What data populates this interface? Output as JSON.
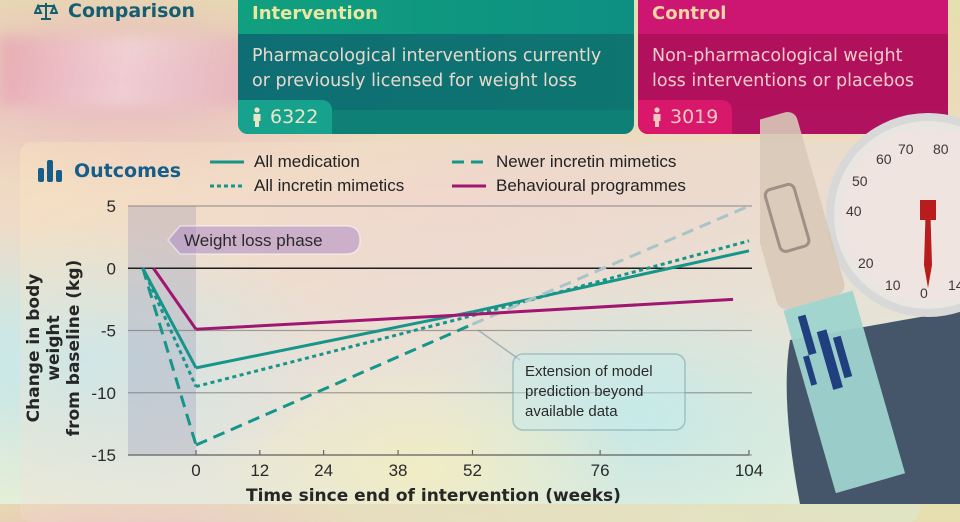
{
  "header": {
    "comparison_label": "Comparison",
    "comparison_icon": "scales-icon"
  },
  "intervention": {
    "title": "Intervention",
    "description_line1": "Pharmacological interventions currently",
    "description_line2": "or previously licensed for weight loss",
    "participants": "6322",
    "participants_icon": "person-icon",
    "color": "#0f8076"
  },
  "control": {
    "title": "Control",
    "description_line1": "Non-pharmacological weight",
    "description_line2": "loss interventions or placebos",
    "participants": "3019",
    "participants_icon": "person-icon",
    "color": "#cc1672"
  },
  "outcomes": {
    "label": "Outcomes",
    "icon": "bar-chart-icon"
  },
  "chart_data": {
    "type": "line",
    "title": "",
    "xlabel": "Time since end of intervention (weeks)",
    "ylabel_line1": "Change in body weight",
    "ylabel_line2": "from baseline (kg)",
    "x_ticks": [
      0,
      12,
      24,
      38,
      52,
      76,
      104
    ],
    "x_tick_labels": [
      "0",
      "12",
      "24",
      "38",
      "52",
      "76",
      "104"
    ],
    "y_ticks": [
      5,
      0,
      -5,
      -10,
      -15
    ],
    "y_tick_labels": [
      "5",
      "0",
      "-5",
      "-10",
      "-15"
    ],
    "xlim": [
      -13,
      104
    ],
    "ylim": [
      -15,
      5
    ],
    "grid": true,
    "legend_position": "top",
    "annotations": {
      "weight_loss_phase": "Weight loss phase",
      "extrapolation": [
        "Extension of model",
        "prediction beyond",
        "available data"
      ]
    },
    "series": [
      {
        "name": "All medication",
        "style": "solid",
        "color": "#16958a",
        "points": [
          [
            -10,
            0
          ],
          [
            0,
            -8.0
          ],
          [
            52,
            -3.5
          ],
          [
            104,
            1.4
          ]
        ],
        "extrapolated_from": 52
      },
      {
        "name": "All incretin mimetics",
        "style": "dotted",
        "color": "#16958a",
        "points": [
          [
            -10,
            0
          ],
          [
            0,
            -9.5
          ],
          [
            52,
            -3.8
          ],
          [
            104,
            2.2
          ]
        ],
        "extrapolated_from": 52
      },
      {
        "name": "Newer incretin mimetics",
        "style": "dashed",
        "color": "#16958a",
        "points": [
          [
            -10,
            0
          ],
          [
            0,
            -14.2
          ],
          [
            52,
            -4.5
          ],
          [
            104,
            5.0
          ]
        ],
        "extrapolated_from": 52,
        "extrapolated_color": "#a8c4c8"
      },
      {
        "name": "Behavioural programmes",
        "style": "solid",
        "color": "#a01670",
        "points": [
          [
            -8,
            0
          ],
          [
            0,
            -4.9
          ],
          [
            52,
            -3.7
          ],
          [
            101,
            -2.5
          ]
        ]
      }
    ]
  },
  "illustration": {
    "scale_dial_labels": [
      "10",
      "20",
      "0",
      "40",
      "50",
      "60",
      "70",
      "80",
      "0",
      "14"
    ]
  }
}
